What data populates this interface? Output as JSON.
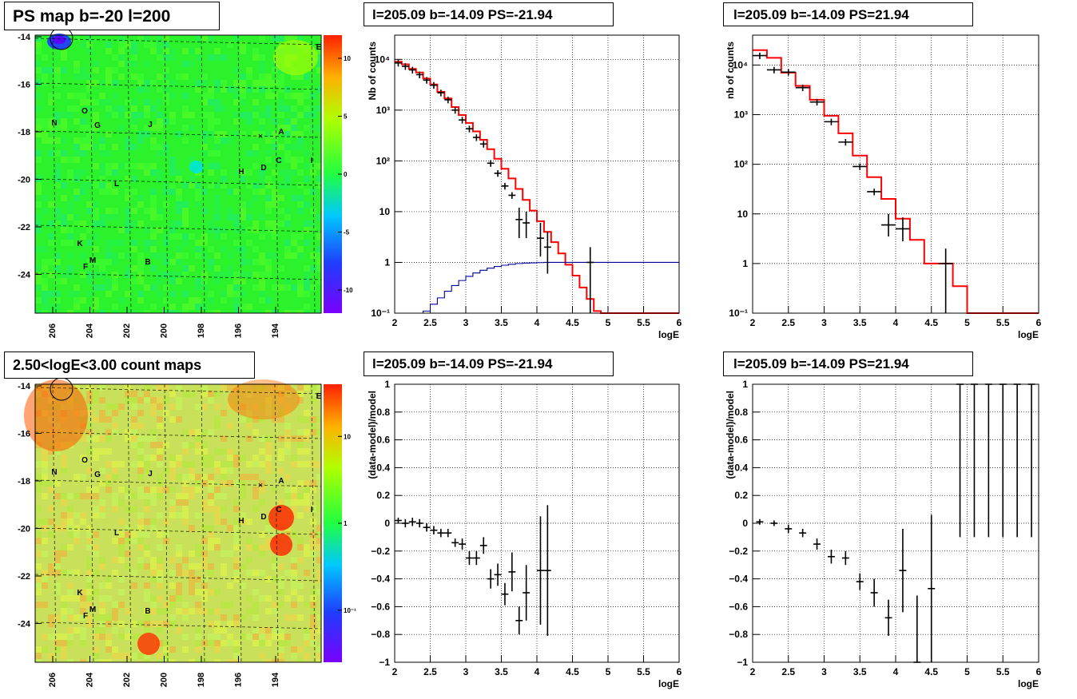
{
  "colors": {
    "data": "#000000",
    "model": "#ff0000",
    "ratio": "#000099",
    "grid": "#000000"
  },
  "map_titles": {
    "ps": "PS map b=-20 l=200",
    "counts": "2.50<logE<3.00 count maps"
  },
  "map_axes": {
    "x_ticks": [
      "206",
      "204",
      "202",
      "200",
      "198",
      "196",
      "194"
    ],
    "y_ticks": [
      "-14",
      "-16",
      "-18",
      "-20",
      "-22",
      "-24"
    ]
  },
  "map_labels": [
    "A",
    "B",
    "C",
    "D",
    "E",
    "F",
    "G",
    "H",
    "I",
    "J",
    "K",
    "L",
    "M",
    "N",
    "O"
  ],
  "colorbars": {
    "ps": {
      "ticks": [
        "10",
        "5",
        "0",
        "-5",
        "-10"
      ],
      "range": [
        -12,
        12
      ]
    },
    "counts": {
      "ticks": [
        "10",
        "1",
        "10⁻¹"
      ],
      "log_range": [
        -1.6,
        1.6
      ]
    }
  },
  "chart_data": [
    {
      "panel": "spectrum-negative",
      "type": "line",
      "title": "l=205.09 b=-14.09 PS=-21.94",
      "xlabel": "logE",
      "ylabel": "Nb of counts",
      "xlim": [
        2,
        6
      ],
      "ylim": [
        0.1,
        30000
      ],
      "ylog": true,
      "x_ticks": [
        "2",
        "2.5",
        "3",
        "3.5",
        "4",
        "4.5",
        "5",
        "5.5",
        "6"
      ],
      "y_ticks": [
        "10⁻¹",
        "1",
        "10",
        "10²",
        "10³",
        "10⁴"
      ],
      "grid": true,
      "bin_edges": [
        2,
        2.1,
        2.2,
        2.3,
        2.4,
        2.5,
        2.6,
        2.7,
        2.8,
        2.9,
        3,
        3.1,
        3.2,
        3.3,
        3.4,
        3.5,
        3.6,
        3.7,
        3.8,
        3.9,
        4,
        4.1,
        4.2,
        4.3,
        4.4,
        4.5,
        4.6,
        4.7,
        4.8,
        4.9,
        5,
        5.1,
        5.2,
        5.3,
        5.4,
        5.5,
        5.6,
        5.7,
        5.8,
        5.9,
        6
      ],
      "model": [
        9000,
        8000,
        6500,
        5500,
        4200,
        3200,
        2300,
        1700,
        1150,
        800,
        560,
        380,
        260,
        170,
        110,
        70,
        45,
        28,
        17,
        10.5,
        6.5,
        4,
        2.5,
        1.5,
        0.9,
        0.55,
        0.32,
        0.19,
        0.11,
        0.1,
        0.1,
        0.1,
        0.1,
        0.1,
        0.1,
        0.1,
        0.1,
        0.1,
        0.1,
        0.1
      ],
      "data_points": [
        {
          "x": 2.05,
          "y": 8500
        },
        {
          "x": 2.15,
          "y": 7300
        },
        {
          "x": 2.25,
          "y": 6200
        },
        {
          "x": 2.35,
          "y": 5000
        },
        {
          "x": 2.45,
          "y": 3900
        },
        {
          "x": 2.55,
          "y": 3100
        },
        {
          "x": 2.65,
          "y": 2200
        },
        {
          "x": 2.75,
          "y": 1600
        },
        {
          "x": 2.85,
          "y": 1000
        },
        {
          "x": 2.95,
          "y": 640
        },
        {
          "x": 3.05,
          "y": 430
        },
        {
          "x": 3.15,
          "y": 290
        },
        {
          "x": 3.25,
          "y": 215
        },
        {
          "x": 3.35,
          "y": 90
        },
        {
          "x": 3.45,
          "y": 57
        },
        {
          "x": 3.55,
          "y": 32
        },
        {
          "x": 3.65,
          "y": 21
        },
        {
          "x": 3.75,
          "y": 7,
          "lo": 3,
          "hi": 12
        },
        {
          "x": 3.85,
          "y": 6,
          "lo": 3,
          "hi": 10
        },
        {
          "x": 4.05,
          "y": 3,
          "lo": 1.3,
          "hi": 6
        },
        {
          "x": 4.15,
          "y": 2,
          "lo": 0.6,
          "hi": 4
        },
        {
          "x": 4.75,
          "y": 1,
          "lo": 0.1,
          "hi": 2
        }
      ],
      "ratio_curve": [
        0.1,
        0.1,
        0.1,
        0.1,
        0.11,
        0.15,
        0.2,
        0.27,
        0.35,
        0.44,
        0.53,
        0.62,
        0.7,
        0.77,
        0.83,
        0.88,
        0.92,
        0.95,
        0.97,
        0.98,
        0.99,
        1,
        1,
        1,
        1,
        1,
        1,
        1,
        1,
        1,
        1,
        1,
        1,
        1,
        1,
        1,
        1,
        1,
        1,
        1
      ]
    },
    {
      "panel": "spectrum-positive",
      "type": "line",
      "title": "l=205.09 b=-14.09 PS=21.94",
      "xlabel": "logE",
      "ylabel": "nb of counts",
      "xlim": [
        2,
        6
      ],
      "ylim": [
        0.1,
        40000
      ],
      "ylog": true,
      "x_ticks": [
        "2",
        "2.5",
        "3",
        "3.5",
        "4",
        "4.5",
        "5",
        "5.5",
        "6"
      ],
      "y_ticks": [
        "10⁻¹",
        "1",
        "10",
        "10²",
        "10³",
        "10⁴"
      ],
      "grid": true,
      "bin_edges": [
        2,
        2.2,
        2.4,
        2.6,
        2.8,
        3,
        3.2,
        3.4,
        3.6,
        3.8,
        4,
        4.2,
        4.4,
        4.6,
        4.8,
        5,
        5.2,
        5.4,
        5.6,
        5.8,
        6
      ],
      "model": [
        20000,
        14000,
        7000,
        3800,
        2000,
        950,
        420,
        150,
        55,
        20,
        8,
        3,
        1,
        1,
        0.35,
        0.1,
        0.1,
        0.1,
        0.1,
        0.1
      ],
      "data_points": [
        {
          "x": 2.1,
          "y": 15500
        },
        {
          "x": 2.3,
          "y": 8000
        },
        {
          "x": 2.5,
          "y": 7200
        },
        {
          "x": 2.7,
          "y": 3500
        },
        {
          "x": 2.9,
          "y": 1800
        },
        {
          "x": 3.1,
          "y": 720
        },
        {
          "x": 3.3,
          "y": 280
        },
        {
          "x": 3.5,
          "y": 90
        },
        {
          "x": 3.7,
          "y": 28
        },
        {
          "x": 3.9,
          "y": 6,
          "lo": 3.5,
          "hi": 10
        },
        {
          "x": 4.1,
          "y": 5,
          "lo": 2.8,
          "hi": 8.5
        },
        {
          "x": 4.7,
          "y": 1,
          "lo": 0.1,
          "hi": 2
        }
      ]
    },
    {
      "panel": "residual-negative",
      "type": "scatter",
      "title": "l=205.09 b=-14.09 PS=-21.94",
      "xlabel": "logE",
      "ylabel": "(data-model)/model",
      "xlim": [
        2,
        6
      ],
      "ylim": [
        -1,
        1
      ],
      "x_ticks": [
        "2",
        "2.5",
        "3",
        "3.5",
        "4",
        "4.5",
        "5",
        "5.5",
        "6"
      ],
      "y_ticks": [
        "−1",
        "−0.8",
        "−0.6",
        "−0.4",
        "−0.2",
        "0",
        "0.2",
        "0.4",
        "0.6",
        "0.8",
        "1"
      ],
      "grid": true,
      "points": [
        {
          "x": 2.05,
          "y": 0.02,
          "e": 0.02
        },
        {
          "x": 2.15,
          "y": 0.0,
          "e": 0.03
        },
        {
          "x": 2.25,
          "y": 0.01,
          "e": 0.03
        },
        {
          "x": 2.35,
          "y": 0.0,
          "e": 0.03
        },
        {
          "x": 2.45,
          "y": -0.03,
          "e": 0.03
        },
        {
          "x": 2.55,
          "y": -0.05,
          "e": 0.03
        },
        {
          "x": 2.65,
          "y": -0.07,
          "e": 0.03
        },
        {
          "x": 2.75,
          "y": -0.07,
          "e": 0.03
        },
        {
          "x": 2.85,
          "y": -0.14,
          "e": 0.03
        },
        {
          "x": 2.95,
          "y": -0.15,
          "e": 0.04
        },
        {
          "x": 3.05,
          "y": -0.25,
          "e": 0.05
        },
        {
          "x": 3.15,
          "y": -0.25,
          "e": 0.05
        },
        {
          "x": 3.25,
          "y": -0.16,
          "e": 0.06
        },
        {
          "x": 3.35,
          "y": -0.4,
          "e": 0.07
        },
        {
          "x": 3.45,
          "y": -0.37,
          "e": 0.08
        },
        {
          "x": 3.55,
          "y": -0.51,
          "e": 0.08
        },
        {
          "x": 3.65,
          "y": -0.35,
          "e": 0.14
        },
        {
          "x": 3.75,
          "y": -0.7,
          "e": 0.1
        },
        {
          "x": 3.85,
          "y": -0.5,
          "e": 0.2
        },
        {
          "x": 4.05,
          "y": -0.34,
          "e": 0.39
        },
        {
          "x": 4.15,
          "y": -0.34,
          "e": 0.47
        }
      ]
    },
    {
      "panel": "residual-positive",
      "type": "scatter",
      "title": "l=205.09 b=-14.09 PS=21.94",
      "xlabel": "logE",
      "ylabel": "(data-model)/model",
      "xlim": [
        2,
        6
      ],
      "ylim": [
        -1,
        1
      ],
      "x_ticks": [
        "2",
        "2.5",
        "3",
        "3.5",
        "4",
        "4.5",
        "5",
        "5.5",
        "6"
      ],
      "y_ticks": [
        "−1",
        "−0.8",
        "−0.6",
        "−0.4",
        "−0.2",
        "0",
        "0.2",
        "0.4",
        "0.6",
        "0.8",
        "1"
      ],
      "grid": true,
      "points": [
        {
          "x": 2.1,
          "y": 0.01,
          "e": 0.02
        },
        {
          "x": 2.3,
          "y": 0.0,
          "e": 0.02
        },
        {
          "x": 2.5,
          "y": -0.04,
          "e": 0.03
        },
        {
          "x": 2.7,
          "y": -0.07,
          "e": 0.03
        },
        {
          "x": 2.9,
          "y": -0.15,
          "e": 0.04
        },
        {
          "x": 3.1,
          "y": -0.24,
          "e": 0.05
        },
        {
          "x": 3.3,
          "y": -0.25,
          "e": 0.05
        },
        {
          "x": 3.5,
          "y": -0.42,
          "e": 0.06
        },
        {
          "x": 3.7,
          "y": -0.5,
          "e": 0.1
        },
        {
          "x": 3.9,
          "y": -0.68,
          "e": 0.13
        },
        {
          "x": 4.1,
          "y": -0.34,
          "e": 0.3
        },
        {
          "x": 4.3,
          "y": -1,
          "e": 0.48
        },
        {
          "x": 4.5,
          "y": -0.47,
          "e": 0.53
        },
        {
          "x": 4.9,
          "y": 1,
          "e": 1.1
        },
        {
          "x": 5.1,
          "y": 1,
          "e": 1.1
        },
        {
          "x": 5.3,
          "y": 1,
          "e": 1.1
        },
        {
          "x": 5.5,
          "y": 1,
          "e": 1.1
        },
        {
          "x": 5.7,
          "y": 1,
          "e": 1.1
        },
        {
          "x": 5.9,
          "y": 1,
          "e": 1.1
        }
      ]
    }
  ]
}
